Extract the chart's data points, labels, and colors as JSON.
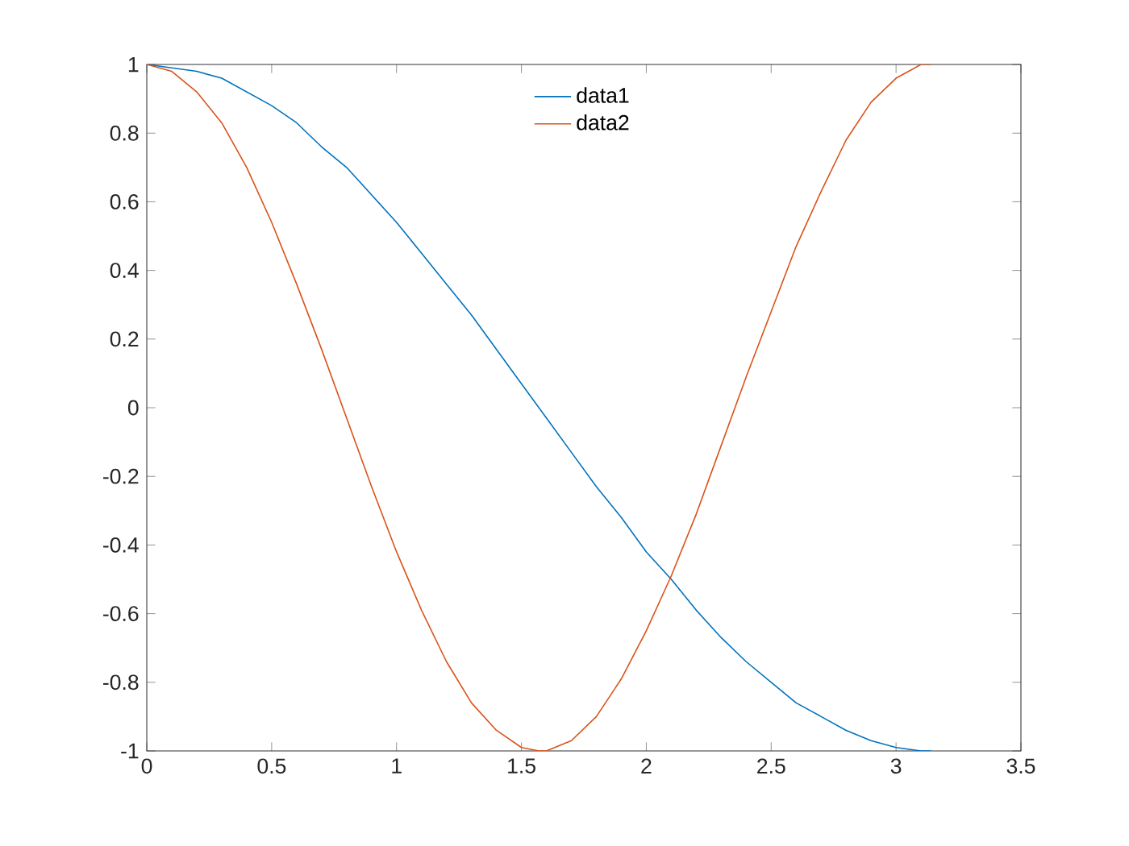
{
  "chart_data": {
    "type": "line",
    "xlim": [
      0,
      3.5
    ],
    "ylim": [
      -1,
      1
    ],
    "xticks": [
      0,
      0.5,
      1,
      1.5,
      2,
      2.5,
      3,
      3.5
    ],
    "yticks": [
      -1,
      -0.8,
      -0.6,
      -0.4,
      -0.2,
      0,
      0.2,
      0.4,
      0.6,
      0.8,
      1
    ],
    "grid": false,
    "legend": "top",
    "marker": "none",
    "line_style": "solid",
    "series": [
      {
        "name": "data1",
        "color": "#0072bd",
        "x": [
          0,
          0.1,
          0.2,
          0.3,
          0.4,
          0.5,
          0.6,
          0.7,
          0.8,
          0.9,
          1,
          1.1,
          1.2,
          1.3,
          1.4,
          1.5,
          1.6,
          1.7,
          1.8,
          1.9,
          2,
          2.1,
          2.2,
          2.3,
          2.4,
          2.5,
          2.6,
          2.7,
          2.8,
          2.9,
          3,
          3.1,
          3.14
        ],
        "values": [
          1,
          0.99,
          0.98,
          0.96,
          0.92,
          0.88,
          0.83,
          0.76,
          0.7,
          0.62,
          0.54,
          0.45,
          0.36,
          0.27,
          0.17,
          0.07,
          -0.03,
          -0.13,
          -0.23,
          -0.32,
          -0.42,
          -0.5,
          -0.59,
          -0.67,
          -0.74,
          -0.8,
          -0.86,
          -0.9,
          -0.94,
          -0.97,
          -0.99,
          -1,
          -1
        ]
      },
      {
        "name": "data2",
        "color": "#d95319",
        "x": [
          0,
          0.1,
          0.2,
          0.3,
          0.4,
          0.5,
          0.6,
          0.7,
          0.8,
          0.9,
          1,
          1.1,
          1.2,
          1.3,
          1.4,
          1.5,
          1.57,
          1.6,
          1.7,
          1.8,
          1.9,
          2,
          2.1,
          2.2,
          2.3,
          2.4,
          2.5,
          2.6,
          2.7,
          2.8,
          2.9,
          3,
          3.1,
          3.14
        ],
        "values": [
          1,
          0.98,
          0.92,
          0.83,
          0.7,
          0.54,
          0.36,
          0.17,
          -0.03,
          -0.23,
          -0.42,
          -0.59,
          -0.74,
          -0.86,
          -0.94,
          -0.99,
          -1,
          -1,
          -0.97,
          -0.9,
          -0.79,
          -0.65,
          -0.49,
          -0.31,
          -0.11,
          0.09,
          0.28,
          0.47,
          0.63,
          0.78,
          0.89,
          0.96,
          1,
          1
        ]
      }
    ]
  }
}
